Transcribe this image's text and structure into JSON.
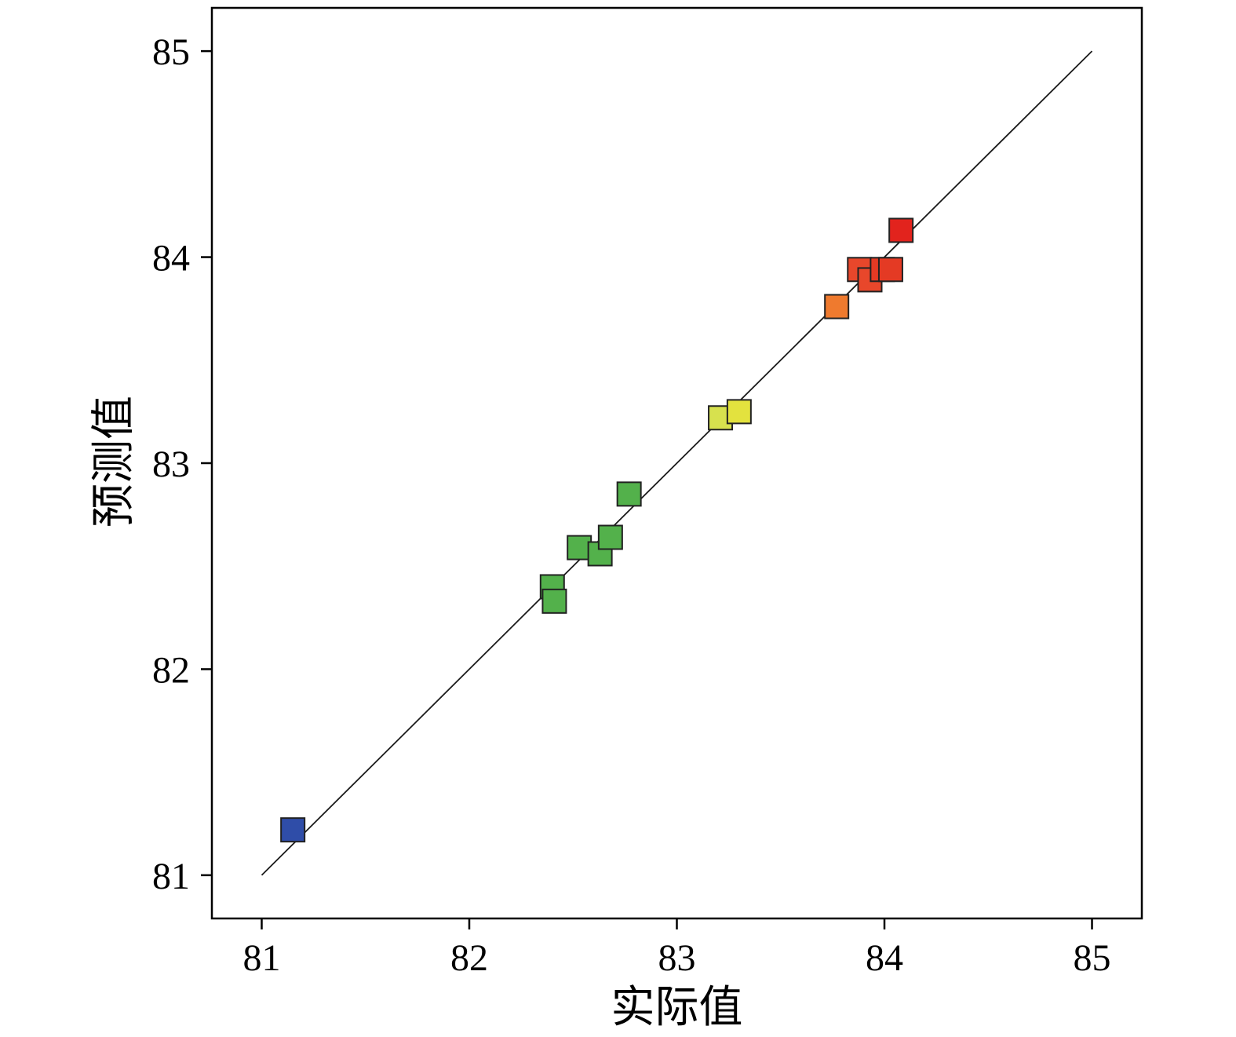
{
  "page": {
    "background": "#ffffff"
  },
  "chart_data": {
    "type": "scatter",
    "title": "",
    "xlabel": "实际值",
    "ylabel": "预测值",
    "xlim": [
      80.76,
      85.24
    ],
    "ylim": [
      80.79,
      85.21
    ],
    "xticks": [
      81,
      82,
      83,
      84,
      85
    ],
    "yticks": [
      81,
      82,
      83,
      84,
      85
    ],
    "grid": false,
    "legend": "none",
    "frame_color": "#000000",
    "reference_line": {
      "from": [
        81,
        81
      ],
      "to": [
        85,
        85
      ],
      "color": "#1a1a1a",
      "width": 1.8
    },
    "marker": {
      "shape": "square",
      "size": 30,
      "edge_color": "#222222",
      "edge_width": 2
    },
    "points": [
      {
        "x": 81.15,
        "y": 81.22,
        "color": "#2f4da8"
      },
      {
        "x": 82.4,
        "y": 82.4,
        "color": "#53b14b"
      },
      {
        "x": 82.41,
        "y": 82.33,
        "color": "#53b14b"
      },
      {
        "x": 82.53,
        "y": 82.59,
        "color": "#53b14b"
      },
      {
        "x": 82.63,
        "y": 82.56,
        "color": "#53b14b"
      },
      {
        "x": 82.68,
        "y": 82.64,
        "color": "#53b14b"
      },
      {
        "x": 82.77,
        "y": 82.85,
        "color": "#53b14b"
      },
      {
        "x": 83.21,
        "y": 83.22,
        "color": "#d7e14e"
      },
      {
        "x": 83.3,
        "y": 83.25,
        "color": "#e3e23e"
      },
      {
        "x": 83.77,
        "y": 83.76,
        "color": "#ef7a2e"
      },
      {
        "x": 83.88,
        "y": 83.94,
        "color": "#e8472b"
      },
      {
        "x": 83.93,
        "y": 83.89,
        "color": "#e8472b"
      },
      {
        "x": 83.99,
        "y": 83.94,
        "color": "#e43a24"
      },
      {
        "x": 84.03,
        "y": 83.94,
        "color": "#e43a24"
      },
      {
        "x": 84.08,
        "y": 84.13,
        "color": "#e2231d"
      }
    ]
  }
}
